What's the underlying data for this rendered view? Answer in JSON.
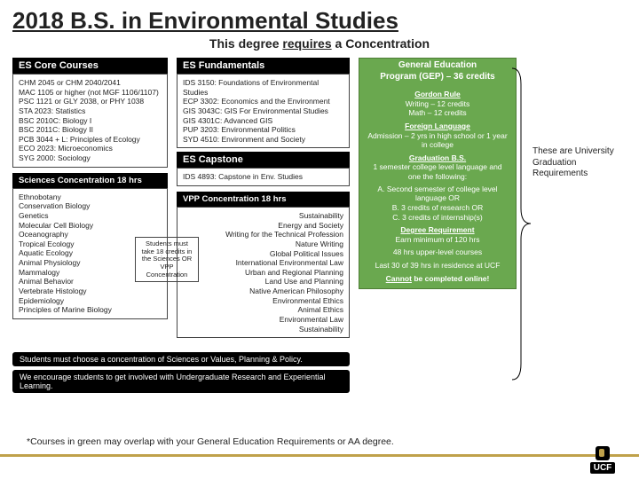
{
  "title": "2018 B.S. in Environmental Studies",
  "subtitle_pre": "This degree ",
  "subtitle_req": "requires",
  "subtitle_post": " a Concentration",
  "col1": {
    "core_hdr": "ES Core Courses",
    "core_items": [
      "CHM 2045 or CHM 2040/2041",
      "MAC 1105 or higher (not MGF 1106/1107)",
      "PSC 1121 or GLY 2038, or PHY 1038",
      "STA 2023: Statistics",
      "BSC 2010C: Biology I",
      "BSC 2011C: Biology II",
      "PCB 3044 + L: Principles of Ecology",
      "ECO 2023: Microeconomics",
      "SYG 2000: Sociology"
    ],
    "sci_hdr": "Sciences Concentration    18 hrs",
    "sci_items": [
      "Ethnobotany",
      "Conservation Biology",
      "Genetics",
      "Molecular Cell Biology",
      "Oceanography",
      "Tropical Ecology",
      "Aquatic Ecology",
      "Animal Physiology",
      "Mammalogy",
      "Animal Behavior",
      "Vertebrate Histology",
      "Epidemiology",
      "Principles of Marine Biology"
    ]
  },
  "col2": {
    "fund_hdr": "ES Fundamentals",
    "fund_items": [
      "IDS 3150: Foundations of Environmental Studies",
      "ECP 3302: Economics and the Environment",
      "GIS 3043C: GIS For Environmental Studies",
      "GIS 4301C: Advanced GIS",
      "PUP 3203: Environmental Politics",
      "SYD 4510: Environment and Society"
    ],
    "cap_hdr": "ES Capstone",
    "cap_item": "IDS 4893: Capstone in Env. Studies",
    "vpp_hdr": "VPP Concentration       18 hrs",
    "vpp_items": [
      "Sustainability",
      "Energy and Society",
      "Writing for the Technical Profession",
      "Nature Writing",
      "Global Political Issues",
      "International Environmental Law",
      "Urban and Regional Planning",
      "Land Use and Planning",
      "Native American Philosophy",
      "Environmental Ethics",
      "Animal Ethics",
      "Environmental Law",
      "Sustainability"
    ],
    "note": "Students must take 18 credits in the Sciences OR VPP Concentration"
  },
  "gep": {
    "hdr1": "General Education",
    "hdr2": "Program (GEP) – 36 credits",
    "gordon_t": "Gordon Rule",
    "gordon_b": "Writing – 12 credits\nMath – 12 credits",
    "lang_t": "Foreign Language",
    "lang_b": "Admission – 2 yrs in high school or 1 year in college",
    "grad_t": "Graduation B.S.",
    "grad_b": "1 semester college level language and one the following:",
    "grad_list": [
      "A.  Second semester of college level language OR",
      "B.  3 credits of research OR",
      "C.  3 credits of internship(s)"
    ],
    "deg_t": "Degree Requirement",
    "deg_b": "Earn minimum of 120 hrs",
    "upper": "48 hrs upper-level courses",
    "res": "Last 30 of 39 hrs in residence at UCF",
    "online_t": "Cannot",
    "online_b": " be completed online!"
  },
  "strip1": "Students must choose a concentration of Sciences or Values, Planning & Policy.",
  "strip2": "We encourage students to get involved with Undergraduate Research and Experiential Learning.",
  "annotation": "These are University Graduation Requirements",
  "footnote": "*Courses in green may overlap with your General Education Requirements or AA degree.",
  "ucf": "UCF",
  "colors": {
    "green": "#6aa84f",
    "gold": "#bfa14a",
    "black": "#000000"
  }
}
